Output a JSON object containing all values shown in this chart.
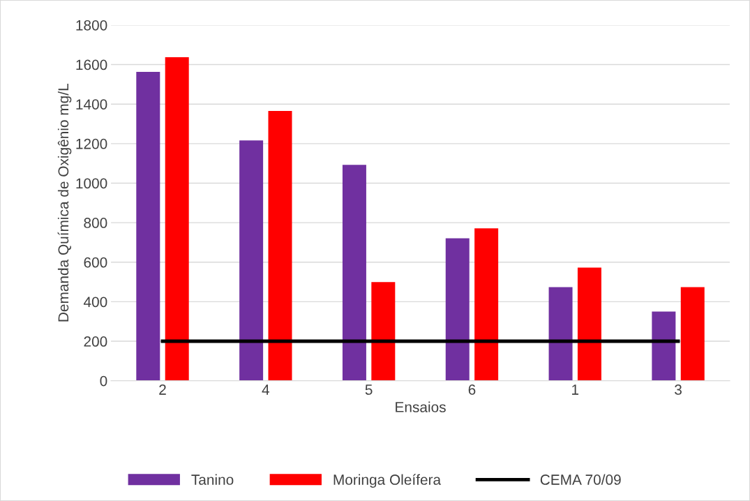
{
  "chart_data": {
    "type": "bar",
    "xlabel": "Ensaios",
    "ylabel": "Demanda Química de Oxigênio mg/L",
    "categories": [
      "2",
      "4",
      "5",
      "6",
      "1",
      "3"
    ],
    "series": [
      {
        "name": "Tanino",
        "color": "#7030a0",
        "values": [
          1563,
          1216,
          1093,
          721,
          474,
          350
        ]
      },
      {
        "name": "Moringa Oleífera",
        "color": "#ff0000",
        "values": [
          1637,
          1365,
          499,
          771,
          573,
          474
        ]
      },
      {
        "name": "CEMA 70/09",
        "type": "line",
        "color": "#000000",
        "values": [
          200,
          200,
          200,
          200,
          200,
          200
        ]
      }
    ],
    "ylim": [
      0,
      1800
    ],
    "yticks": [
      0,
      200,
      400,
      600,
      800,
      1000,
      1200,
      1400,
      1600,
      1800
    ],
    "grid": "y",
    "legend": "bottom"
  }
}
